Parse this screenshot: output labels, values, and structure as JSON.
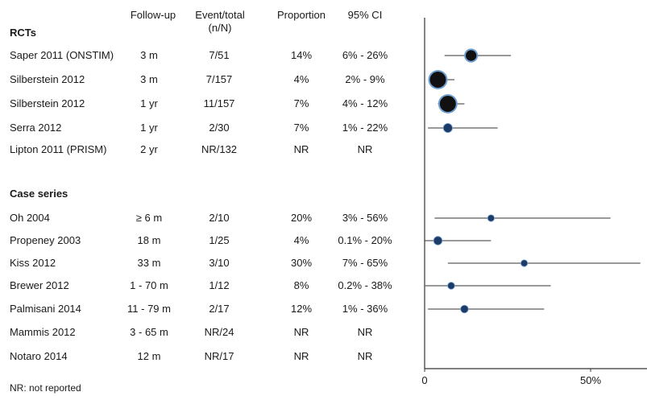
{
  "headers": {
    "followup": "Follow-up",
    "event_line1": "Event/total",
    "event_line2": "(n/N)",
    "proportion": "Proportion",
    "ci": "95% CI"
  },
  "sections": [
    {
      "label": "RCTs"
    },
    {
      "label": "Case series"
    }
  ],
  "footnote": "NR: not reported",
  "colors": {
    "marker_fill": "#1e3a66",
    "marker_ring": "#6d9fd1",
    "line": "#333333",
    "axis": "#333333"
  },
  "chart_data": {
    "type": "forest",
    "xlim": [
      0,
      0.72
    ],
    "xticks": [
      {
        "value": 0,
        "label": "0"
      },
      {
        "value": 0.5,
        "label": "50%"
      }
    ],
    "rows": [
      {
        "study": "Saper 2011 (ONSTIM)",
        "followup": "3 m",
        "event": "7/51",
        "prop_label": "14%",
        "ci_label": "6% - 26%",
        "est": 0.14,
        "lo": 0.06,
        "hi": 0.26,
        "weight": 51
      },
      {
        "study": "Silberstein 2012",
        "followup": "3 m",
        "event": "7/157",
        "prop_label": "4%",
        "ci_label": "2% - 9%",
        "est": 0.04,
        "lo": 0.02,
        "hi": 0.09,
        "weight": 157
      },
      {
        "study": "Silberstein 2012",
        "followup": "1 yr",
        "event": "11/157",
        "prop_label": "7%",
        "ci_label": "4% - 12%",
        "est": 0.07,
        "lo": 0.04,
        "hi": 0.12,
        "weight": 157
      },
      {
        "study": "Serra 2012",
        "followup": "1 yr",
        "event": "2/30",
        "prop_label": "7%",
        "ci_label": "1% - 22%",
        "est": 0.07,
        "lo": 0.01,
        "hi": 0.22,
        "weight": 30
      },
      {
        "study": "Lipton 2011 (PRISM)",
        "followup": "2 yr",
        "event": "NR/132",
        "prop_label": "NR",
        "ci_label": "NR",
        "est": null,
        "lo": null,
        "hi": null,
        "weight": 132
      },
      {
        "study": "Oh 2004",
        "followup": "≥ 6 m",
        "event": "2/10",
        "prop_label": "20%",
        "ci_label": "3% - 56%",
        "est": 0.2,
        "lo": 0.03,
        "hi": 0.56,
        "weight": 10
      },
      {
        "study": "Propeney 2003",
        "followup": "18 m",
        "event": "1/25",
        "prop_label": "4%",
        "ci_label": "0.1% - 20%",
        "est": 0.04,
        "lo": 0.001,
        "hi": 0.2,
        "weight": 25
      },
      {
        "study": "Kiss 2012",
        "followup": "33 m",
        "event": "3/10",
        "prop_label": "30%",
        "ci_label": "7% - 65%",
        "est": 0.3,
        "lo": 0.07,
        "hi": 0.65,
        "weight": 10
      },
      {
        "study": "Brewer 2012",
        "followup": "1 - 70 m",
        "event": "1/12",
        "prop_label": "8%",
        "ci_label": "0.2% - 38%",
        "est": 0.08,
        "lo": 0.002,
        "hi": 0.38,
        "weight": 12
      },
      {
        "study": "Palmisani 2014",
        "followup": "11 - 79 m",
        "event": "2/17",
        "prop_label": "12%",
        "ci_label": "1% - 36%",
        "est": 0.12,
        "lo": 0.01,
        "hi": 0.36,
        "weight": 17
      },
      {
        "study": "Mammis 2012",
        "followup": "3 - 65 m",
        "event": "NR/24",
        "prop_label": "NR",
        "ci_label": "NR",
        "est": null,
        "lo": null,
        "hi": null,
        "weight": 24
      },
      {
        "study": "Notaro 2014",
        "followup": "12 m",
        "event": "NR/17",
        "prop_label": "NR",
        "ci_label": "NR",
        "est": null,
        "lo": null,
        "hi": null,
        "weight": 17
      }
    ]
  }
}
